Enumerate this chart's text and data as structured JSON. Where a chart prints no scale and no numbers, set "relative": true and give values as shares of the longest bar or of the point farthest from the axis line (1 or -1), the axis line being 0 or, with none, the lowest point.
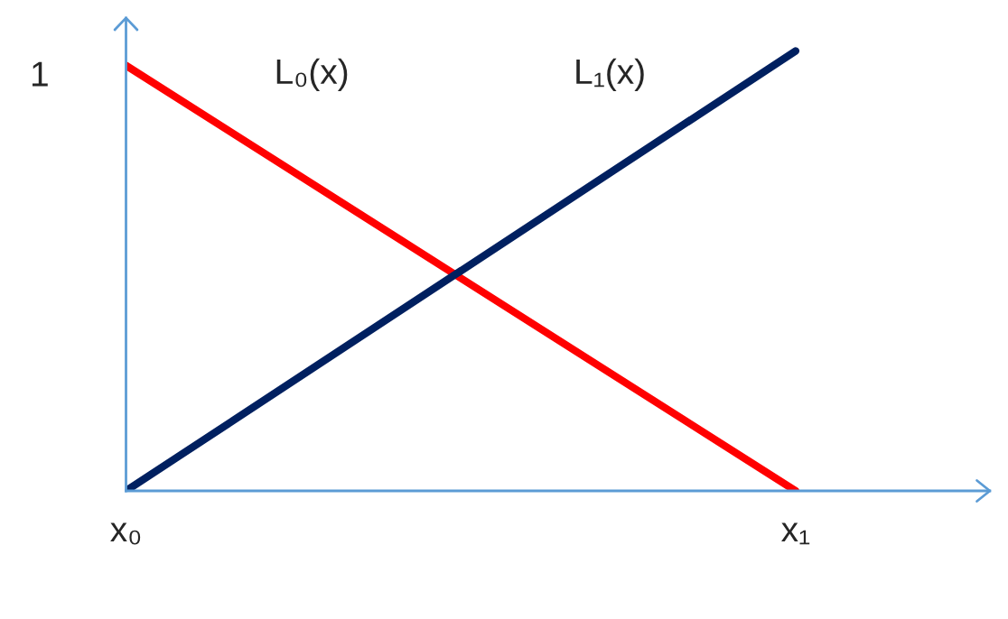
{
  "chart_data": {
    "type": "line",
    "relative": true,
    "categories": [
      "x₀",
      "x₁"
    ],
    "series": [
      {
        "color": "#ff0000",
        "values": [
          0.967,
          0
        ]
      },
      {
        "color": "#002060",
        "values": [
          0,
          1
        ]
      }
    ],
    "annotations": [
      "1",
      "L₀(x)",
      "L₁(x)"
    ],
    "grid": false,
    "legend": false
  }
}
